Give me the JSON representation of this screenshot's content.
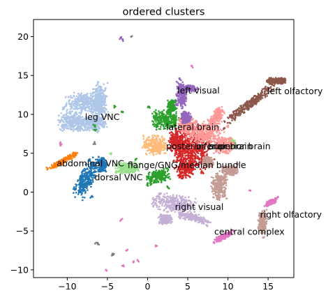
{
  "chart_data": {
    "type": "scatter",
    "title": "ordered clusters",
    "xlabel": "",
    "ylabel": "",
    "xlim": [
      -14.2,
      18.2
    ],
    "ylim": [
      -11.0,
      22.2
    ],
    "xticks": [
      -10,
      -5,
      0,
      5,
      10,
      15
    ],
    "yticks": [
      -10,
      -5,
      0,
      5,
      10,
      15,
      20
    ],
    "grid": false,
    "legend": "none",
    "series": [
      {
        "key": "leg",
        "color": "#aec7e8",
        "clouds": [
          {
            "cx": -7.8,
            "cy": 11.5,
            "rx": 2.3,
            "ry": 1.2,
            "angle": 0
          },
          {
            "cx": -6.0,
            "cy": 11.2,
            "rx": 1.0,
            "ry": 2.8,
            "angle": 0
          },
          {
            "cx": -9.5,
            "cy": 9.0,
            "rx": 1.5,
            "ry": 1.2,
            "angle": 0
          },
          {
            "cx": -7.0,
            "cy": 8.8,
            "rx": 1.8,
            "ry": 0.8,
            "angle": 0
          }
        ],
        "points": [
          [
            -6.0,
            13.5
          ],
          [
            -6.2,
            12.5
          ],
          [
            -8.2,
            12.1
          ],
          [
            -10.4,
            10.7
          ],
          [
            -9.6,
            10.3
          ],
          [
            -10.5,
            8.6
          ],
          [
            -8.7,
            8.1
          ],
          [
            -6.2,
            7.8
          ],
          [
            -5.8,
            9.2
          ]
        ]
      },
      {
        "key": "abdominal",
        "color": "#ff7f0e",
        "clouds": [
          {
            "cx": -10.5,
            "cy": 4.0,
            "rx": 2.0,
            "ry": 0.35,
            "angle": 30
          }
        ],
        "points": [
          [
            -12.4,
            3.0
          ],
          [
            -11.2,
            3.5
          ],
          [
            -10.0,
            4.3
          ],
          [
            -8.9,
            5.0
          ]
        ]
      },
      {
        "key": "dorsal",
        "color": "#1f77b4",
        "clouds": [
          {
            "cx": -7.6,
            "cy": 1.8,
            "rx": 0.9,
            "ry": 2.6,
            "angle": -25
          },
          {
            "cx": -5.6,
            "cy": 3.6,
            "rx": 0.5,
            "ry": 0.9,
            "angle": 0
          }
        ],
        "points": [
          [
            -7.9,
            0.2
          ],
          [
            -7.5,
            1.9
          ],
          [
            -6.9,
            3.3
          ],
          [
            -8.3,
            1.2
          ],
          [
            -7.0,
            -0.6
          ],
          [
            -5.5,
            4.3
          ],
          [
            -5.8,
            2.8
          ]
        ]
      },
      {
        "key": "greenlight",
        "color": "#98df8a",
        "clouds": [
          {
            "cx": -2.6,
            "cy": 3.1,
            "rx": 1.4,
            "ry": 0.7,
            "angle": 0
          },
          {
            "cx": 10.5,
            "cy": 6.3,
            "rx": 0.4,
            "ry": 0.6,
            "angle": 0
          }
        ],
        "points": [
          [
            -1.5,
            3.7
          ],
          [
            -3.5,
            2.7
          ],
          [
            -2.2,
            2.6
          ],
          [
            -4.5,
            5.0
          ],
          [
            -1.0,
            3.6
          ]
        ]
      },
      {
        "key": "peach",
        "color": "#ffbb78",
        "clouds": [
          {
            "cx": 1.0,
            "cy": 6.0,
            "rx": 1.5,
            "ry": 1.2,
            "angle": 0
          }
        ],
        "points": [
          [
            -0.2,
            6.5
          ],
          [
            0.8,
            5.4
          ],
          [
            2.0,
            6.8
          ],
          [
            1.5,
            5.0
          ]
        ]
      },
      {
        "key": "green",
        "color": "#2ca02c",
        "clouds": [
          {
            "cx": 2.2,
            "cy": 9.3,
            "rx": 1.6,
            "ry": 1.2,
            "angle": 0
          },
          {
            "cx": 1.3,
            "cy": 2.0,
            "rx": 1.5,
            "ry": 0.8,
            "angle": 20
          },
          {
            "cx": 3.0,
            "cy": 11.0,
            "rx": 0.6,
            "ry": 0.8,
            "angle": 0
          }
        ],
        "points": [
          [
            0.2,
            11.0
          ],
          [
            1.0,
            10.2
          ],
          [
            3.5,
            11.8
          ],
          [
            -4.0,
            11.0
          ],
          [
            -3.2,
            10.3
          ],
          [
            -1.5,
            4.2
          ],
          [
            2.5,
            3.0
          ],
          [
            0.0,
            0.9
          ],
          [
            2.5,
            0.6
          ],
          [
            -6.6,
            8.5
          ],
          [
            -6.5,
            7.9
          ]
        ]
      },
      {
        "key": "red",
        "color": "#d62728",
        "clouds": [
          {
            "cx": 5.5,
            "cy": 5.5,
            "rx": 2.2,
            "ry": 2.8,
            "angle": 0
          },
          {
            "cx": 3.5,
            "cy": 6.5,
            "rx": 0.8,
            "ry": 1.4,
            "angle": 0
          },
          {
            "cx": 4.6,
            "cy": 3.0,
            "rx": 1.0,
            "ry": 1.2,
            "angle": 0
          }
        ],
        "points": [
          [
            5.8,
            8.3
          ],
          [
            4.0,
            2.0
          ],
          [
            6.8,
            2.5
          ],
          [
            6.5,
            7.5
          ],
          [
            4.2,
            6.0
          ]
        ]
      },
      {
        "key": "pink",
        "color": "#ff9896",
        "clouds": [
          {
            "cx": 7.2,
            "cy": 7.5,
            "rx": 2.2,
            "ry": 1.5,
            "angle": 0
          },
          {
            "cx": 9.5,
            "cy": 6.0,
            "rx": 1.2,
            "ry": 1.0,
            "angle": 0
          },
          {
            "cx": 8.6,
            "cy": 9.8,
            "rx": 0.6,
            "ry": 1.2,
            "angle": -35
          },
          {
            "cx": 4.9,
            "cy": 8.6,
            "rx": 1.0,
            "ry": 1.0,
            "angle": 0
          }
        ],
        "points": [
          [
            9.0,
            10.4
          ],
          [
            10.0,
            8.5
          ],
          [
            6.0,
            9.2
          ],
          [
            8.5,
            5.2
          ],
          [
            10.6,
            6.2
          ]
        ]
      },
      {
        "key": "brown",
        "color": "#8c564b",
        "clouds": [
          {
            "cx": 12.6,
            "cy": 11.3,
            "rx": 3.8,
            "ry": 0.55,
            "angle": 38
          },
          {
            "cx": 16.0,
            "cy": 14.3,
            "rx": 1.1,
            "ry": 0.4,
            "angle": 0
          }
        ],
        "points": [
          [
            9.5,
            8.2
          ],
          [
            10.6,
            9.6
          ],
          [
            12.5,
            11.5
          ],
          [
            14.6,
            13.4
          ],
          [
            16.8,
            14.6
          ],
          [
            16.5,
            14.2
          ],
          [
            15.2,
            14.1
          ]
        ]
      },
      {
        "key": "tan",
        "color": "#c49c94",
        "clouds": [
          {
            "cx": 8.9,
            "cy": 0.8,
            "rx": 1.0,
            "ry": 1.8,
            "angle": 0
          },
          {
            "cx": 10.2,
            "cy": 2.8,
            "rx": 1.0,
            "ry": 0.6,
            "angle": 0
          },
          {
            "cx": 14.3,
            "cy": -3.8,
            "rx": 0.5,
            "ry": 1.4,
            "angle": 0
          },
          {
            "cx": 7.5,
            "cy": 3.8,
            "rx": 0.7,
            "ry": 0.6,
            "angle": 0
          }
        ],
        "points": [
          [
            8.8,
            -0.8
          ],
          [
            9.5,
            2.0
          ],
          [
            11.2,
            3.5
          ],
          [
            14.5,
            -5.8
          ],
          [
            14.0,
            -3.0
          ],
          [
            7.2,
            4.5
          ]
        ]
      },
      {
        "key": "lavender",
        "color": "#c5b0d5",
        "clouds": [
          {
            "cx": 3.3,
            "cy": -1.5,
            "rx": 2.5,
            "ry": 1.1,
            "angle": -10
          },
          {
            "cx": 5.8,
            "cy": -3.3,
            "rx": 2.0,
            "ry": 0.5,
            "angle": -15
          },
          {
            "cx": 2.2,
            "cy": -3.5,
            "rx": 0.8,
            "ry": 0.6,
            "angle": 0
          }
        ],
        "points": [
          [
            1.5,
            -0.2
          ],
          [
            2.0,
            -3.8
          ],
          [
            4.0,
            -2.8
          ],
          [
            6.8,
            -3.8
          ],
          [
            7.4,
            -4.3
          ],
          [
            0.8,
            -1.0
          ]
        ]
      },
      {
        "key": "purple",
        "color": "#9467bd",
        "clouds": [
          {
            "cx": 4.2,
            "cy": 12.5,
            "rx": 0.6,
            "ry": 1.6,
            "angle": 0
          },
          {
            "cx": 5.2,
            "cy": 13.3,
            "rx": 0.8,
            "ry": 0.4,
            "angle": 0
          },
          {
            "cx": 4.8,
            "cy": 9.6,
            "rx": 0.6,
            "ry": 0.7,
            "angle": 0
          }
        ],
        "points": [
          [
            4.0,
            14.5
          ],
          [
            3.6,
            11.2
          ],
          [
            6.3,
            13.3
          ],
          [
            4.5,
            10.2
          ],
          [
            -3.3,
            19.8
          ],
          [
            -3.1,
            19.6
          ]
        ]
      },
      {
        "key": "magenta",
        "color": "#e377c2",
        "clouds": [
          {
            "cx": 9.5,
            "cy": -5.7,
            "rx": 1.2,
            "ry": 0.35,
            "angle": 30
          },
          {
            "cx": 15.4,
            "cy": -1.3,
            "rx": 0.7,
            "ry": 0.3,
            "angle": 25
          }
        ],
        "points": [
          [
            8.3,
            -6.4
          ],
          [
            10.7,
            -5.0
          ],
          [
            16.0,
            -0.8
          ],
          [
            5.5,
            16.2
          ],
          [
            16.2,
            -0.6
          ],
          [
            14.7,
            -1.7
          ],
          [
            -3.0,
            -9.4
          ],
          [
            -1.8,
            -9.0
          ],
          [
            -1.2,
            -8.8
          ],
          [
            -5.2,
            -10.0
          ],
          [
            -2.6,
            -7.5
          ],
          [
            -10.9,
            6.3
          ],
          [
            -10.8,
            6.0
          ],
          [
            2.2,
            -13.3
          ],
          [
            12.8,
            0.2
          ],
          [
            1.0,
            -7.0
          ],
          [
            -3.3,
            -3.6
          ]
        ]
      },
      {
        "key": "gray",
        "color": "#7f7f7f",
        "clouds": [],
        "points": [
          [
            -6.4,
            -6.5
          ],
          [
            -2.0,
            20.0
          ],
          [
            -6.2,
            -6.7
          ],
          [
            -4.4,
            -8.1
          ],
          [
            -4.3,
            -7.9
          ],
          [
            -6.6,
            6.3
          ],
          [
            -1.9,
            3.5
          ]
        ]
      }
    ],
    "annotations": [
      {
        "text": "left visual",
        "x": 3.7,
        "y": 12.7
      },
      {
        "text": "left olfactory",
        "x": 14.9,
        "y": 12.6
      },
      {
        "text": "leg VNC",
        "x": -7.8,
        "y": 9.3
      },
      {
        "text": "lateral brain",
        "x": 2.3,
        "y": 8.0
      },
      {
        "text": "posterior brain",
        "x": 2.3,
        "y": 5.5
      },
      {
        "text": "inferior brain",
        "x": 6.0,
        "y": 5.5
      },
      {
        "text": "superior brain",
        "x": 7.7,
        "y": 5.5
      },
      {
        "text": "abdominal VNC",
        "x": -11.3,
        "y": 3.3
      },
      {
        "text": "flange/GNG/median bundle",
        "x": -2.5,
        "y": 3.1
      },
      {
        "text": "dorsal VNC",
        "x": -6.6,
        "y": 1.5
      },
      {
        "text": "right visual",
        "x": 3.4,
        "y": -2.3
      },
      {
        "text": "right olfactory",
        "x": 14.0,
        "y": -3.3
      },
      {
        "text": "central complex",
        "x": 8.3,
        "y": -5.5
      }
    ]
  }
}
